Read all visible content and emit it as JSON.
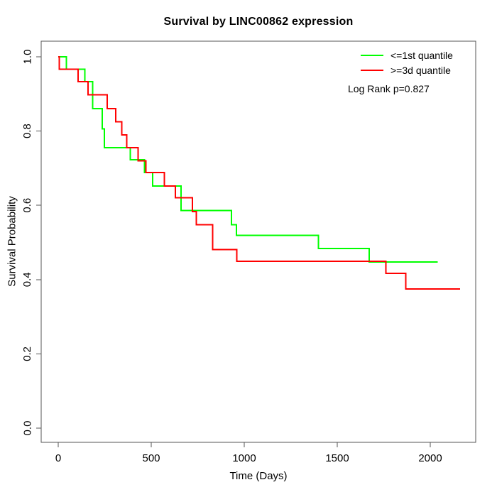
{
  "chart_data": {
    "type": "line",
    "subtype": "kaplan-meier-step",
    "title": "Survival by LINC00862 expression",
    "xlabel": "Time (Days)",
    "ylabel": "Survival Probability",
    "x_ticks": [
      0,
      500,
      1000,
      1500,
      2000
    ],
    "y_tick_labels": [
      "0.0",
      "0.2",
      "0.4",
      "0.6",
      "0.8",
      "1.0"
    ],
    "xlim": [
      0,
      2200
    ],
    "ylim": [
      0.0,
      1.0
    ],
    "grid": false,
    "legend_position": "top-right",
    "annotation": "Log Rank p=0.827",
    "series": [
      {
        "name": "<=1st quantile",
        "color": "#00ff00",
        "end_time": 2040,
        "steps": [
          [
            0,
            1.0
          ],
          [
            43,
            0.967
          ],
          [
            144,
            0.933
          ],
          [
            186,
            0.86
          ],
          [
            237,
            0.806
          ],
          [
            249,
            0.755
          ],
          [
            387,
            0.723
          ],
          [
            463,
            0.688
          ],
          [
            508,
            0.652
          ],
          [
            660,
            0.586
          ],
          [
            932,
            0.548
          ],
          [
            958,
            0.519
          ],
          [
            1398,
            0.484
          ],
          [
            1672,
            0.447
          ]
        ]
      },
      {
        "name": ">=3d quantile",
        "color": "#ff0000",
        "end_time": 2160,
        "steps": [
          [
            0,
            1.0
          ],
          [
            5,
            0.967
          ],
          [
            107,
            0.933
          ],
          [
            160,
            0.898
          ],
          [
            264,
            0.86
          ],
          [
            309,
            0.825
          ],
          [
            342,
            0.79
          ],
          [
            368,
            0.755
          ],
          [
            430,
            0.72
          ],
          [
            472,
            0.688
          ],
          [
            571,
            0.652
          ],
          [
            629,
            0.62
          ],
          [
            722,
            0.583
          ],
          [
            742,
            0.548
          ],
          [
            831,
            0.481
          ],
          [
            959,
            0.449
          ],
          [
            1761,
            0.417
          ],
          [
            1869,
            0.375
          ]
        ]
      }
    ]
  },
  "legend": {
    "items": [
      {
        "label": "<=1st quantile",
        "color": "#00ff00"
      },
      {
        "label": ">=3d quantile",
        "color": "#ff0000"
      }
    ],
    "note": "Log Rank p=0.827"
  }
}
